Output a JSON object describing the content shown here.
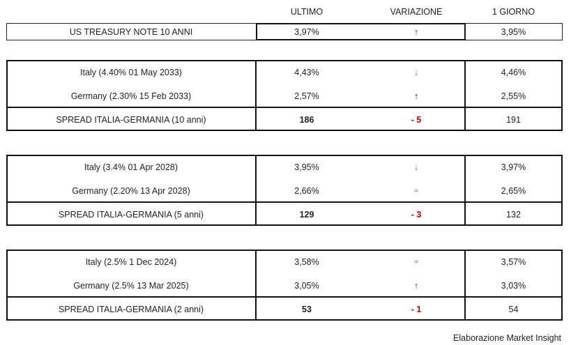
{
  "headers": {
    "ultimo": "ULTIMO",
    "variazione": "VARIAZIONE",
    "giorno": "1 GIORNO"
  },
  "colors": {
    "up_red": "#c00000",
    "down_green": "#2e9b4e",
    "neutral_blue": "#3d7fc1"
  },
  "treasury": {
    "label": "US TREASURY NOTE 10 ANNI",
    "ultimo": "3,97%",
    "variazione": "↑",
    "variazione_icon": "arrow-up-red",
    "giorno": "3,95%"
  },
  "blocks": [
    {
      "rows": [
        {
          "label": "Italy (4.40% 01 May 2033)",
          "ultimo": "4,43%",
          "variazione": "↓",
          "variazione_icon": "arrow-down-green",
          "giorno": "4,46%"
        },
        {
          "label": "Germany (2.30% 15 Feb 2033)",
          "ultimo": "2,57%",
          "variazione": "↑",
          "variazione_icon": "arrow-up-black",
          "giorno": "2,55%"
        }
      ],
      "spread": {
        "label": "SPREAD ITALIA-GERMANIA (10 anni)",
        "ultimo": "186",
        "variazione": "- 5",
        "giorno": "191"
      }
    },
    {
      "rows": [
        {
          "label": "Italy (3.4% 01 Apr 2028)",
          "ultimo": "3,95%",
          "variazione": "↓",
          "variazione_icon": "arrow-down-green",
          "giorno": "3,97%"
        },
        {
          "label": "Germany (2.20% 13 Apr 2028)",
          "ultimo": "2,66%",
          "variazione": "≈",
          "variazione_icon": "approx-blue",
          "giorno": "2,65%"
        }
      ],
      "spread": {
        "label": "SPREAD ITALIA-GERMANIA (5 anni)",
        "ultimo": "129",
        "variazione": "- 3",
        "giorno": "132"
      }
    },
    {
      "rows": [
        {
          "label": "Italy (2.5% 1 Dec 2024)",
          "ultimo": "3,58%",
          "variazione": "≈",
          "variazione_icon": "approx-blue",
          "giorno": "3,57%"
        },
        {
          "label": "Germany (2.5% 13 Mar 2025)",
          "ultimo": "3,05%",
          "variazione": "↑",
          "variazione_icon": "arrow-up-red",
          "giorno": "3,03%"
        }
      ],
      "spread": {
        "label": "SPREAD ITALIA-GERMANIA (2 anni)",
        "ultimo": "53",
        "variazione": "- 1",
        "giorno": "54"
      }
    }
  ],
  "footer": "Elaborazione Market Insight"
}
